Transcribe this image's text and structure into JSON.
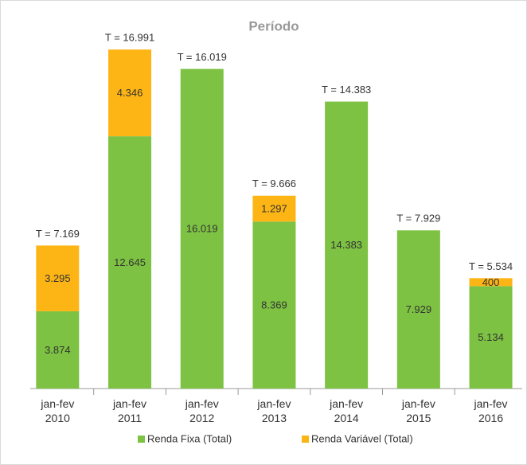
{
  "chart_data": {
    "type": "stacked-bar",
    "title": "Período",
    "categories": [
      "jan-fev\n2010",
      "jan-fev\n2011",
      "jan-fev\n2012",
      "jan-fev\n2013",
      "jan-fev\n2014",
      "jan-fev\n2015",
      "jan-fev\n2016"
    ],
    "series": [
      {
        "name": "Renda Fixa (Total)",
        "color": "#7dc242",
        "values": [
          3874,
          12645,
          16019,
          8369,
          14383,
          7929,
          5134
        ],
        "value_labels": [
          "3.874",
          "12.645",
          "16.019",
          "8.369",
          "14.383",
          "7.929",
          "5.134"
        ]
      },
      {
        "name": "Renda Variável (Total)",
        "color": "#fdb515",
        "values": [
          3295,
          4346,
          null,
          1297,
          null,
          null,
          400
        ],
        "value_labels": [
          "3.295",
          "4.346",
          null,
          "1.297",
          null,
          null,
          "400"
        ]
      }
    ],
    "annotations": [
      "T = 7.169",
      "T = 16.991",
      "T = 16.019",
      "T = 9.666",
      "T = 14.383",
      "T = 7.929",
      "T = 5.534"
    ],
    "ylim": [
      0,
      17000
    ]
  }
}
